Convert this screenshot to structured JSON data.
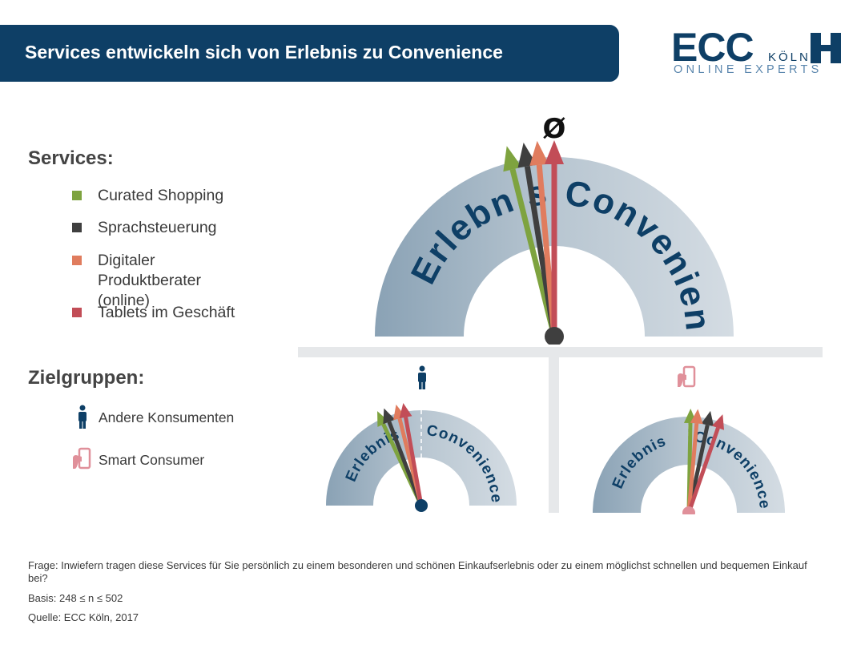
{
  "header": {
    "title": "Services entwickeln sich von Erlebnis zu Convenience"
  },
  "logo": {
    "brand": "ECC",
    "city": "KÖLN",
    "tagline": "ONLINE EXPERTS"
  },
  "services": {
    "heading": "Services:",
    "items": [
      {
        "label": "Curated Shopping",
        "color": "#7ea33f"
      },
      {
        "label": "Sprachsteuerung",
        "color": "#3f3f3f"
      },
      {
        "label": "Digitaler Produktberater\n(online)",
        "color": "#e07c5e"
      },
      {
        "label": "Tablets im Geschäft",
        "color": "#c24d57"
      }
    ]
  },
  "groups": {
    "heading": "Zielgruppen:",
    "items": [
      {
        "label": "Andere Konsumenten",
        "icon": "person-icon",
        "color": "#0e3f66"
      },
      {
        "label": "Smart Consumer",
        "icon": "smartphone-hand-icon",
        "color": "#e0909a"
      }
    ]
  },
  "footer": {
    "question": "Frage: Inwiefern tragen diese Services für Sie persönlich zu einem besonderen und schönen Einkaufserlebnis oder zu einem möglichst schnellen und bequemen Einkauf bei?",
    "basis": "Basis: 248 ≤ n ≤ 502",
    "source": "Quelle: ECC Köln, 2017"
  },
  "chart_data": [
    {
      "type": "gauge",
      "title": "Ø",
      "scale_left": "Erlebnis",
      "scale_right": "Convenience",
      "series": [
        {
          "name": "Curated Shopping",
          "angle_deg": -14,
          "color": "#7ea33f"
        },
        {
          "name": "Sprachsteuerung",
          "angle_deg": -9,
          "color": "#3f3f3f"
        },
        {
          "name": "Digitaler Produktberater (online)",
          "angle_deg": -5,
          "color": "#e07c5e"
        },
        {
          "name": "Tablets im Geschäft",
          "angle_deg": 0,
          "color": "#c24d57"
        }
      ]
    },
    {
      "type": "gauge",
      "group": "Andere Konsumenten",
      "scale_left": "Erlebnis",
      "scale_right": "Convenience",
      "series": [
        {
          "name": "Curated Shopping",
          "angle_deg": -25,
          "color": "#7ea33f"
        },
        {
          "name": "Sprachsteuerung",
          "angle_deg": -21,
          "color": "#3f3f3f"
        },
        {
          "name": "Digitaler Produktberater (online)",
          "angle_deg": -14,
          "color": "#e07c5e"
        },
        {
          "name": "Tablets im Geschäft",
          "angle_deg": -10,
          "color": "#c24d57"
        }
      ]
    },
    {
      "type": "gauge",
      "group": "Smart Consumer",
      "scale_left": "Erlebnis",
      "scale_right": "Convenience",
      "series": [
        {
          "name": "Curated Shopping",
          "angle_deg": 1,
          "color": "#7ea33f"
        },
        {
          "name": "Sprachsteuerung",
          "angle_deg": 12,
          "color": "#3f3f3f"
        },
        {
          "name": "Digitaler Produktberater (online)",
          "angle_deg": 5,
          "color": "#e07c5e"
        },
        {
          "name": "Tablets im Geschäft",
          "angle_deg": 19,
          "color": "#c24d57"
        }
      ]
    }
  ]
}
